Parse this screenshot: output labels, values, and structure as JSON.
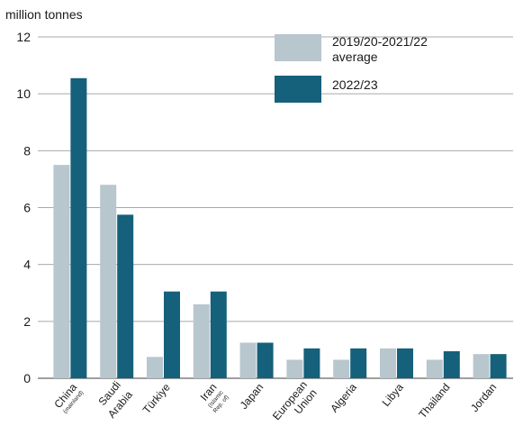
{
  "chart_data": {
    "type": "bar",
    "title": "",
    "ylabel": "million tonnes",
    "xlabel": "",
    "ylim": [
      0,
      12
    ],
    "yticks": [
      0,
      2,
      4,
      6,
      8,
      10,
      12
    ],
    "grid": true,
    "legend_position": "top-right",
    "categories": [
      {
        "name": "China",
        "sub": "(mainland)"
      },
      {
        "name": "Saudi",
        "name2": "Arabia"
      },
      {
        "name": "Türkiye"
      },
      {
        "name": "Iran",
        "sub": "(Islamic",
        "sub2": "Rep. of)"
      },
      {
        "name": "Japan"
      },
      {
        "name": "European",
        "name2": "Union",
        "small": true
      },
      {
        "name": "Algeria"
      },
      {
        "name": "Libya"
      },
      {
        "name": "Thailand"
      },
      {
        "name": "Jordan"
      }
    ],
    "series": [
      {
        "name": "2019/20-2021/22 average",
        "label_line1": "2019/20-2021/22",
        "label_line2": "average",
        "color": "#b8c6ce",
        "values": [
          7.5,
          6.8,
          0.75,
          2.6,
          1.25,
          0.65,
          0.65,
          1.05,
          0.65,
          0.85
        ]
      },
      {
        "name": "2022/23",
        "label_line1": "2022/23",
        "label_line2": "",
        "color": "#15607a",
        "values": [
          10.55,
          5.75,
          3.05,
          3.05,
          1.25,
          1.05,
          1.05,
          1.05,
          0.95,
          0.85
        ]
      }
    ]
  }
}
